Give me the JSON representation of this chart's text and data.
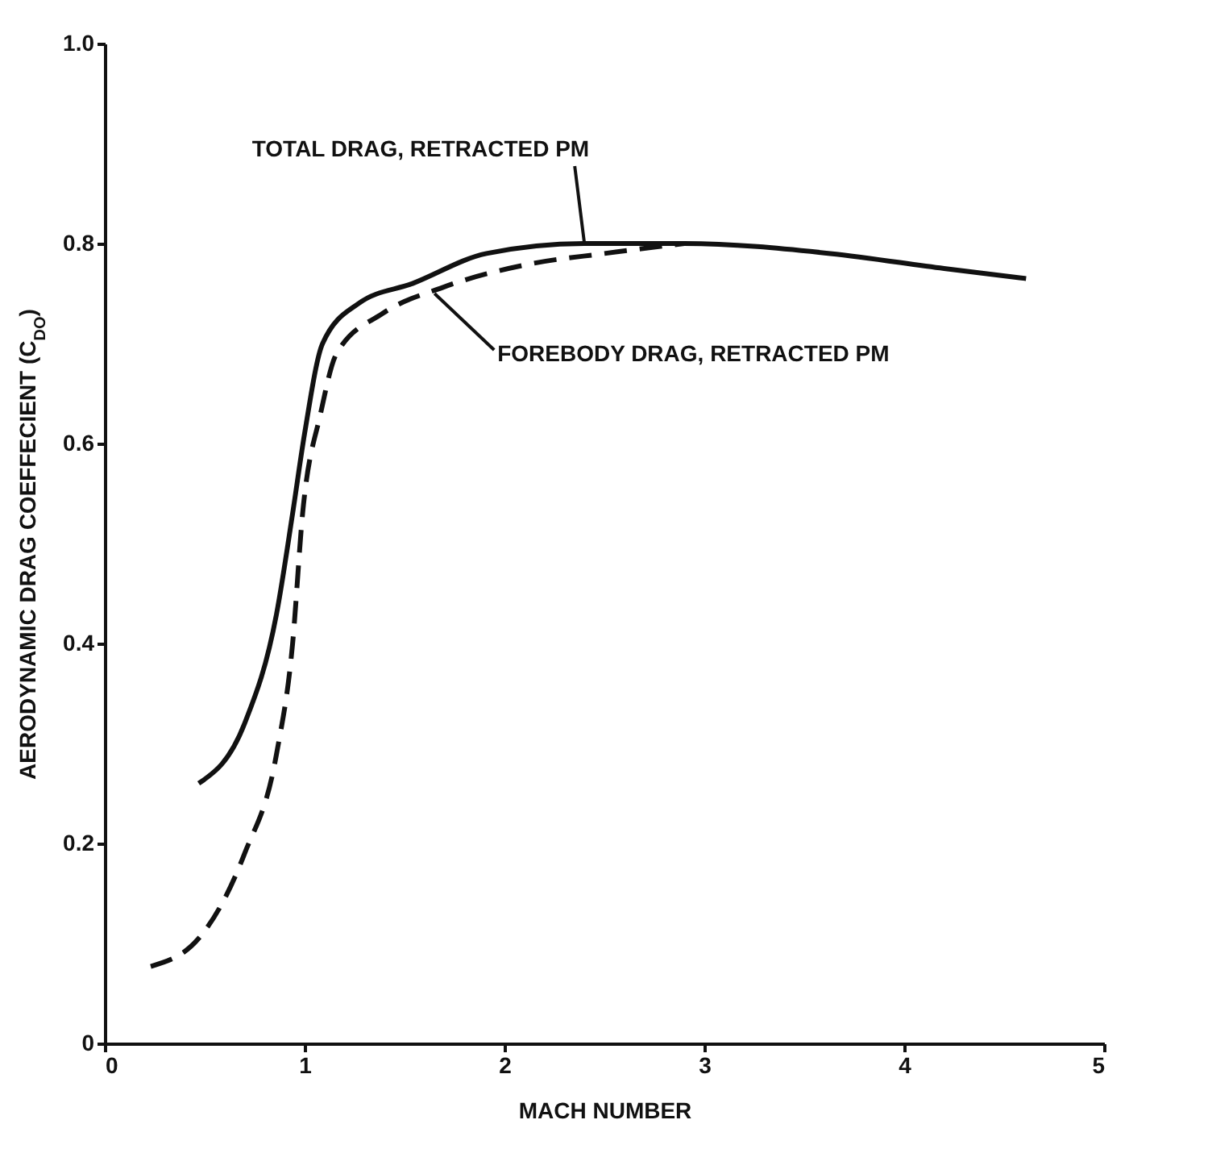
{
  "chart_data": {
    "type": "line",
    "xlabel": "MACH NUMBER",
    "ylabel": "AERODYNAMIC DRAG COEFFECIENT (C$_{DO}$)",
    "xlim": [
      0,
      5
    ],
    "xticks": [
      0,
      1,
      2,
      3,
      4,
      5
    ],
    "ylim": [
      0,
      1.0
    ],
    "yticks": [
      0,
      0.2,
      0.4,
      0.6,
      0.8,
      {
        "value": 1.0,
        "label": "1.0"
      }
    ],
    "grid": false,
    "marker": "none",
    "series": [
      {
        "color": "#111111",
        "line_style": "dashed",
        "x": [
          0.23,
          0.47,
          0.7,
          0.86,
          0.94,
          0.99,
          1.08,
          1.16,
          1.39,
          1.69,
          2.14,
          2.5,
          2.9
        ],
        "values": [
          0.077,
          0.105,
          0.19,
          0.29,
          0.4,
          0.53,
          0.63,
          0.69,
          0.73,
          0.756,
          0.78,
          0.79,
          0.8
        ]
      },
      {
        "color": "#111111",
        "line_style": "solid",
        "x": [
          0.47,
          0.7,
          0.86,
          0.94,
          1.0,
          1.09,
          1.27,
          1.54,
          1.91,
          2.4,
          2.9,
          3.63,
          4.2,
          4.61
        ],
        "values": [
          0.26,
          0.32,
          0.43,
          0.53,
          0.61,
          0.7,
          0.74,
          0.76,
          0.79,
          0.8,
          0.8,
          0.79,
          0.775,
          0.765
        ]
      }
    ],
    "annotations": [
      {
        "text": "TOTAL DRAG, RETRACTED PM",
        "x": 2.4,
        "y": 0.8
      },
      {
        "text": "FOREBODY DRAG, RETRACTED PM",
        "x": 1.65,
        "y": 0.75
      }
    ]
  }
}
